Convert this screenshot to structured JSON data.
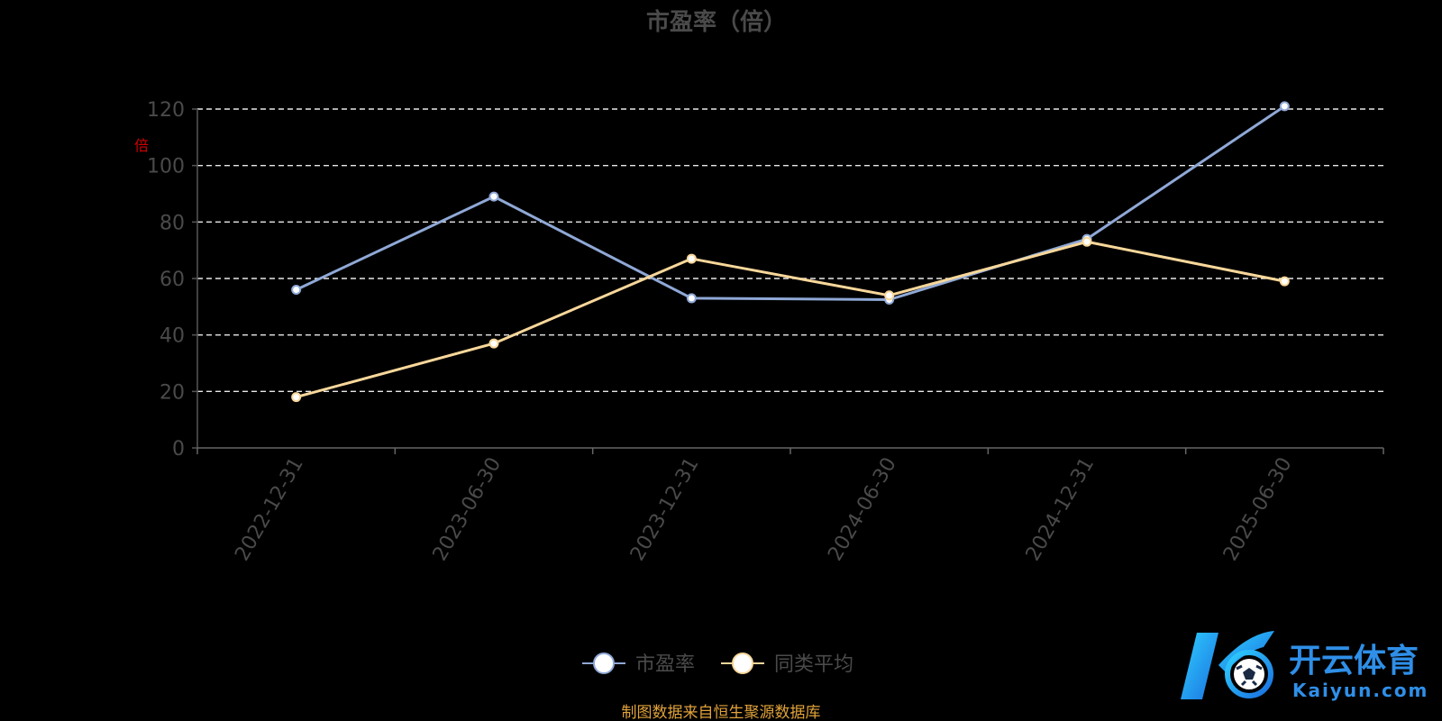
{
  "chart_data": {
    "type": "line",
    "title": "市盈率（倍）",
    "ylabel": "倍",
    "categories": [
      "2022-12-31",
      "2023-06-30",
      "2023-12-31",
      "2024-06-30",
      "2024-12-31",
      "2025-06-30"
    ],
    "ylim": [
      0,
      120
    ],
    "yticks": [
      0,
      20,
      40,
      60,
      80,
      100,
      120
    ],
    "grid": true,
    "legend_position": "bottom-center",
    "series": [
      {
        "name": "市盈率",
        "color": "#8fa8d6",
        "values": [
          56,
          89,
          53,
          52.5,
          74,
          121
        ]
      },
      {
        "name": "同类平均",
        "color": "#f8d79a",
        "values": [
          18,
          37,
          67,
          54,
          73,
          59
        ]
      }
    ]
  },
  "source_note": "制图数据来自恒生聚源数据库",
  "watermark": {
    "cn": "开云体育",
    "en": "Kaiyun.com",
    "icon": "soccer-ball-logo-icon"
  }
}
